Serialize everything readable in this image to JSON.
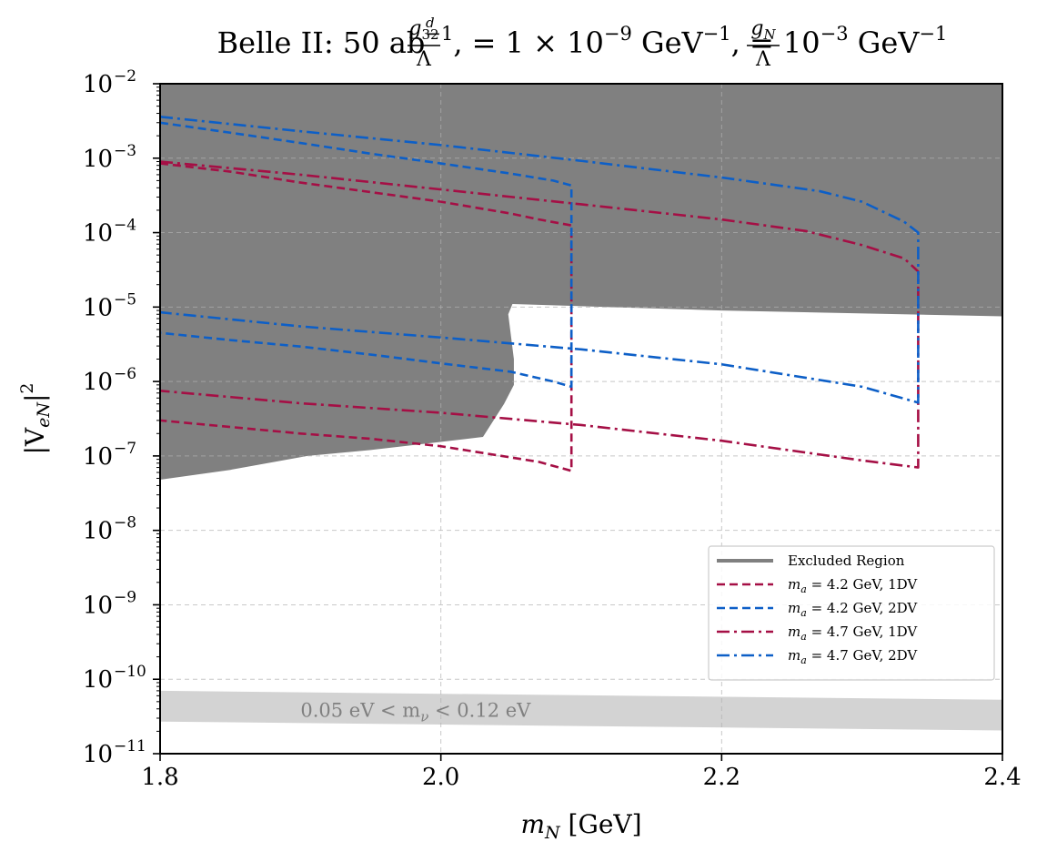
{
  "chart_data": {
    "type": "line",
    "title": {
      "prefix": "Belle II: 50 ab",
      "prefix_sup": "−1",
      "coupling1_num": "g",
      "coupling1_num_sub": "32",
      "coupling1_num_sup": "d",
      "coupling1_den": "Λ",
      "coupling1_value": "= 1 × 10",
      "coupling1_value_sup": "−9",
      "coupling1_unit": "GeV",
      "coupling1_unit_sup": "−1",
      "coupling2_num": "g",
      "coupling2_num_sub": "N",
      "coupling2_den": "Λ",
      "coupling2_value": "= 10",
      "coupling2_value_sup": "−3",
      "coupling2_unit": "GeV",
      "coupling2_unit_sup": "−1"
    },
    "xlabel": {
      "var": "m",
      "sub": "N",
      "unit": "[GeV]"
    },
    "ylabel": {
      "text": "|V",
      "sub": "eN",
      "close": "|",
      "sup": "2"
    },
    "x_scale": "linear",
    "y_scale": "log",
    "xlim": [
      1.8,
      2.4
    ],
    "ylim": [
      1e-11,
      0.01
    ],
    "x_ticks": [
      {
        "value": 1.8,
        "label": "1.8"
      },
      {
        "value": 2.0,
        "label": "2.0"
      },
      {
        "value": 2.2,
        "label": "2.2"
      },
      {
        "value": 2.4,
        "label": "2.4"
      }
    ],
    "y_ticks": [
      {
        "value": 1e-11,
        "base": "10",
        "exp": "−11"
      },
      {
        "value": 1e-10,
        "base": "10",
        "exp": "−10"
      },
      {
        "value": 1e-09,
        "base": "10",
        "exp": "−9"
      },
      {
        "value": 1e-08,
        "base": "10",
        "exp": "−8"
      },
      {
        "value": 1e-07,
        "base": "10",
        "exp": "−7"
      },
      {
        "value": 1e-06,
        "base": "10",
        "exp": "−6"
      },
      {
        "value": 1e-05,
        "base": "10",
        "exp": "−5"
      },
      {
        "value": 0.0001,
        "base": "10",
        "exp": "−4"
      },
      {
        "value": 0.001,
        "base": "10",
        "exp": "−3"
      },
      {
        "value": 0.01,
        "base": "10",
        "exp": "−2"
      }
    ],
    "grid": true,
    "legend_position": "lower-right",
    "legend_fontsize": 15,
    "excluded_region": {
      "name": "Excluded Region",
      "color": "#808080",
      "polygon": [
        [
          1.8,
          0.01
        ],
        [
          2.4,
          0.01
        ],
        [
          2.4,
          7.5e-06
        ],
        [
          2.2,
          9e-06
        ],
        [
          2.12,
          1e-05
        ],
        [
          2.051,
          1.1e-05
        ],
        [
          2.048,
          8e-06
        ],
        [
          2.05,
          4e-06
        ],
        [
          2.052,
          2e-06
        ],
        [
          2.052,
          9e-07
        ],
        [
          2.045,
          5e-07
        ],
        [
          2.03,
          1.8e-07
        ],
        [
          1.95,
          1.2e-07
        ],
        [
          1.905,
          1e-07
        ],
        [
          1.85,
          6.5e-08
        ],
        [
          1.8,
          4.8e-08
        ]
      ]
    },
    "neutrino_band": {
      "label": "0.05 eV < m",
      "label_sub": "ν",
      "label_tail": "< 0.12 eV",
      "label_at": [
        1.9,
        3.9e-11
      ],
      "color": "#d3d3d3",
      "upper": [
        [
          1.8,
          7e-11
        ],
        [
          2.4,
          5.3e-11
        ]
      ],
      "lower": [
        [
          1.8,
          2.7e-11
        ],
        [
          2.4,
          2.05e-11
        ]
      ]
    },
    "series": [
      {
        "name": "m",
        "name_sub": "a",
        "name_rest": "= 4.2 GeV, 1DV",
        "color": "#a50f45",
        "dash": "dashed",
        "points": [
          [
            1.8,
            0.00085
          ],
          [
            1.85,
            0.00066
          ],
          [
            1.9,
            0.00047
          ],
          [
            1.95,
            0.00035
          ],
          [
            2.0,
            0.00026
          ],
          [
            2.05,
            0.00018
          ],
          [
            2.07,
            0.00015
          ],
          [
            2.093,
            0.000125
          ],
          [
            2.093,
            6.3e-08
          ],
          [
            2.07,
            8.3e-08
          ],
          [
            2.0,
            1.35e-07
          ],
          [
            1.95,
            1.7e-07
          ],
          [
            1.9,
            2e-07
          ],
          [
            1.85,
            2.45e-07
          ],
          [
            1.8,
            3e-07
          ]
        ]
      },
      {
        "name": "m",
        "name_sub": "a",
        "name_rest": "= 4.2 GeV, 2DV",
        "color": "#0d5fc7",
        "dash": "dashed",
        "points": [
          [
            1.8,
            0.003
          ],
          [
            1.85,
            0.0022
          ],
          [
            1.9,
            0.0016
          ],
          [
            1.95,
            0.00115
          ],
          [
            2.0,
            0.00085
          ],
          [
            2.05,
            0.00062
          ],
          [
            2.08,
            0.0005
          ],
          [
            2.093,
            0.00043
          ],
          [
            2.093,
            8.5e-07
          ],
          [
            2.08,
            1e-06
          ],
          [
            2.05,
            1.35e-06
          ],
          [
            2.0,
            1.75e-06
          ],
          [
            1.95,
            2.3e-06
          ],
          [
            1.9,
            2.95e-06
          ],
          [
            1.85,
            3.6e-06
          ],
          [
            1.8,
            4.5e-06
          ]
        ]
      },
      {
        "name": "m",
        "name_sub": "a",
        "name_rest": "= 4.7 GeV, 1DV",
        "color": "#a50f45",
        "dash": "dashdot",
        "points": [
          [
            1.8,
            0.0009
          ],
          [
            1.9,
            0.0006
          ],
          [
            2.0,
            0.00038
          ],
          [
            2.1,
            0.00024
          ],
          [
            2.2,
            0.00015
          ],
          [
            2.26,
            0.000105
          ],
          [
            2.3,
            6.8e-05
          ],
          [
            2.33,
            4.5e-05
          ],
          [
            2.34,
            3e-05
          ],
          [
            2.34,
            7e-08
          ],
          [
            2.3,
            8.7e-08
          ],
          [
            2.2,
            1.6e-07
          ],
          [
            2.1,
            2.6e-07
          ],
          [
            2.0,
            3.8e-07
          ],
          [
            1.9,
            5.1e-07
          ],
          [
            1.8,
            7.5e-07
          ]
        ]
      },
      {
        "name": "m",
        "name_sub": "a",
        "name_rest": "= 4.7 GeV, 2DV",
        "color": "#0d5fc7",
        "dash": "dashdot",
        "points": [
          [
            1.8,
            0.0036
          ],
          [
            1.9,
            0.0023
          ],
          [
            2.0,
            0.0015
          ],
          [
            2.1,
            0.00092
          ],
          [
            2.2,
            0.00055
          ],
          [
            2.27,
            0.00036
          ],
          [
            2.3,
            0.00026
          ],
          [
            2.33,
            0.00014
          ],
          [
            2.34,
            0.0001
          ],
          [
            2.34,
            5.2e-07
          ],
          [
            2.3,
            8.5e-07
          ],
          [
            2.2,
            1.7e-06
          ],
          [
            2.1,
            2.7e-06
          ],
          [
            2.0,
            3.9e-06
          ],
          [
            1.9,
            5.5e-06
          ],
          [
            1.8,
            8.5e-06
          ]
        ]
      }
    ]
  }
}
